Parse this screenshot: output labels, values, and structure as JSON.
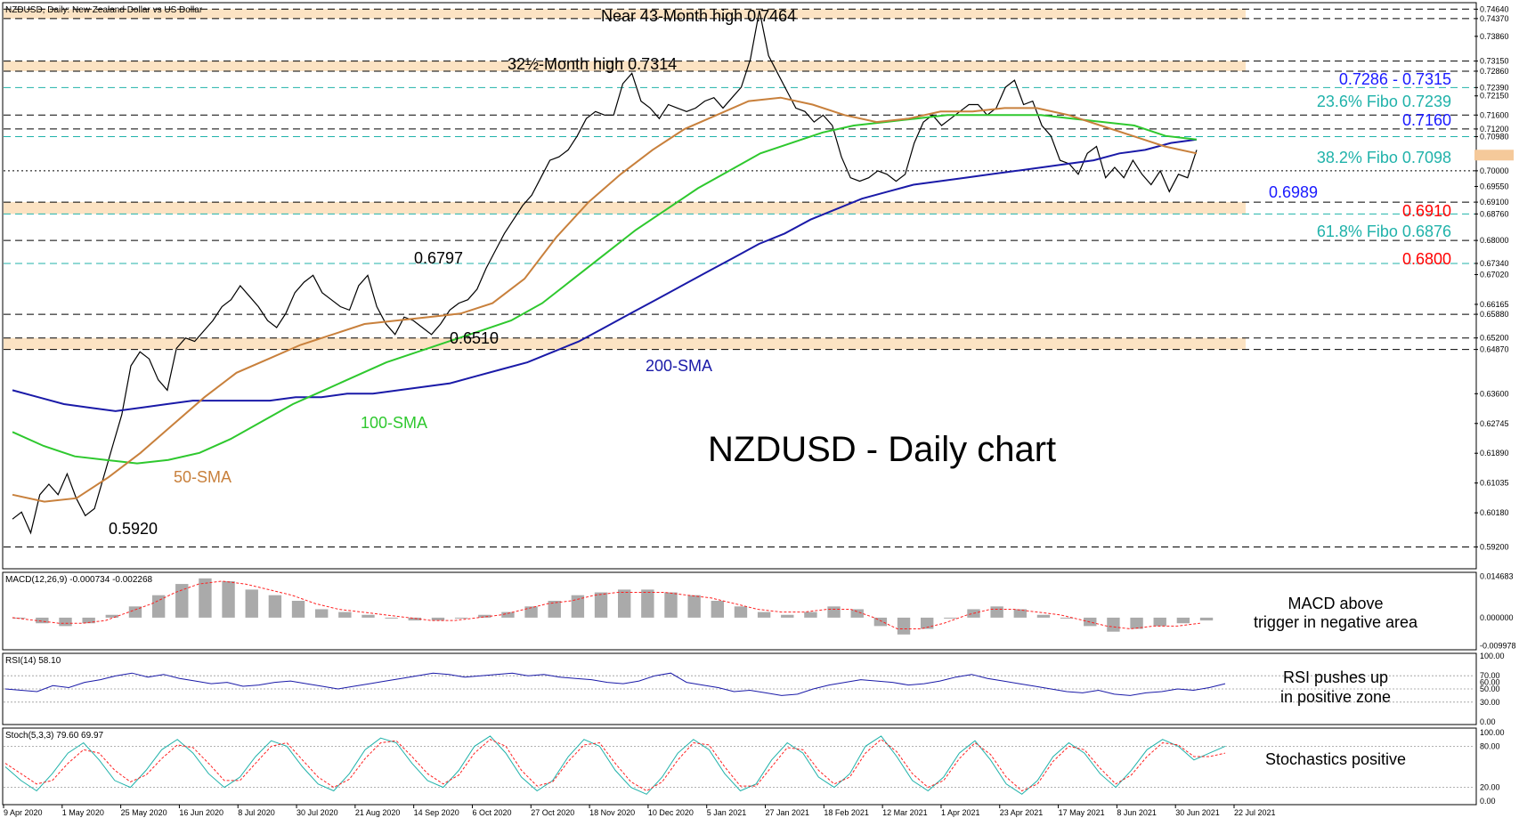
{
  "header": {
    "symbol_line": "NZDUSD, Daily:  New Zealand Dollar vs US Dollar"
  },
  "chart_data": [
    {
      "type": "line",
      "panel": "price",
      "title": "NZDUSD - Daily chart",
      "x_tick_labels": [
        "9 Apr 2020",
        "1 May 2020",
        "25 May 2020",
        "16 Jun 2020",
        "8 Jul 2020",
        "30 Jul 2020",
        "21 Aug 2020",
        "14 Sep 2020",
        "6 Oct 2020",
        "27 Oct 2020",
        "18 Nov 2020",
        "10 Dec 2020",
        "5 Jan 2021",
        "27 Jan 2021",
        "18 Feb 2021",
        "12 Mar 2021",
        "1 Apr 2021",
        "23 Apr 2021",
        "17 May 2021",
        "8 Jun 2021",
        "30 Jun 2021",
        "22 Jul 2021"
      ],
      "y_tick_labels": [
        "0.74640",
        "0.74370",
        "0.73860",
        "0.73150",
        "0.72860",
        "0.72390",
        "0.72150",
        "0.71600",
        "0.71200",
        "0.70980",
        "0.70450",
        "0.70000",
        "0.69550",
        "0.69100",
        "0.68760",
        "0.68000",
        "0.67340",
        "0.67020",
        "0.66165",
        "0.65880",
        "0.65200",
        "0.64870",
        "0.63600",
        "0.62745",
        "0.61890",
        "0.61035",
        "0.60180",
        "0.59200"
      ],
      "ylim": [
        0.5865,
        0.7475
      ],
      "current_price": 0.7045,
      "levels": [
        {
          "value": 0.7464,
          "style": "dashed",
          "color": "#000000"
        },
        {
          "value": 0.7437,
          "style": "dashed",
          "color": "#000000"
        },
        {
          "value": 0.7315,
          "style": "dashed",
          "color": "#000000"
        },
        {
          "value": 0.7286,
          "style": "dashed",
          "color": "#000000"
        },
        {
          "value": 0.7239,
          "style": "dashed",
          "color": "#20b2aa"
        },
        {
          "value": 0.716,
          "style": "dashed",
          "color": "#000000"
        },
        {
          "value": 0.712,
          "style": "dashed",
          "color": "#000000"
        },
        {
          "value": 0.7098,
          "style": "dashed",
          "color": "#20b2aa"
        },
        {
          "value": 0.7,
          "style": "dotted",
          "color": "#000000"
        },
        {
          "value": 0.691,
          "style": "dashed",
          "color": "#000000"
        },
        {
          "value": 0.6876,
          "style": "dashed",
          "color": "#20b2aa"
        },
        {
          "value": 0.68,
          "style": "dashed",
          "color": "#000000"
        },
        {
          "value": 0.6734,
          "style": "dashed",
          "color": "#20b2aa"
        },
        {
          "value": 0.6588,
          "style": "dashed",
          "color": "#000000"
        },
        {
          "value": 0.652,
          "style": "dashed",
          "color": "#000000"
        },
        {
          "value": 0.6487,
          "style": "dashed",
          "color": "#000000"
        },
        {
          "value": 0.592,
          "style": "dashed",
          "color": "#000000"
        }
      ],
      "zones": [
        [
          0.7437,
          0.7464
        ],
        [
          0.7286,
          0.7315
        ],
        [
          0.6876,
          0.691
        ],
        [
          0.6487,
          0.652
        ]
      ],
      "annotations": [
        {
          "text": "Near 43-Month high 0.7464",
          "color": "#000000"
        },
        {
          "text": "32½-Month high 0.7314",
          "color": "#000000"
        },
        {
          "text": "0.6797",
          "color": "#000000"
        },
        {
          "text": "0.6510",
          "color": "#000000"
        },
        {
          "text": "0.5920",
          "color": "#000000"
        },
        {
          "text": "200-SMA",
          "color": "#1a1aa8"
        },
        {
          "text": "100-SMA",
          "color": "#2ec82e"
        },
        {
          "text": "50-SMA",
          "color": "#c8803c"
        },
        {
          "text": "0.7286 - 0.7315",
          "color": "#1a1aff"
        },
        {
          "text": "23.6% Fibo 0.7239",
          "color": "#20b2aa"
        },
        {
          "text": "0.7160",
          "color": "#1a1aff"
        },
        {
          "text": "38.2% Fibo 0.7098",
          "color": "#20b2aa"
        },
        {
          "text": "0.6989",
          "color": "#1a1aff"
        },
        {
          "text": "0.6910",
          "color": "#ff0000"
        },
        {
          "text": "61.8% Fibo 0.6876",
          "color": "#20b2aa"
        },
        {
          "text": "0.6800",
          "color": "#ff0000"
        }
      ],
      "series": [
        {
          "name": "Close",
          "color": "#000000",
          "values": [
            0.6,
            0.602,
            0.596,
            0.607,
            0.61,
            0.607,
            0.613,
            0.606,
            0.601,
            0.603,
            0.612,
            0.621,
            0.63,
            0.644,
            0.648,
            0.646,
            0.64,
            0.637,
            0.649,
            0.652,
            0.651,
            0.654,
            0.657,
            0.661,
            0.663,
            0.667,
            0.664,
            0.661,
            0.657,
            0.655,
            0.659,
            0.665,
            0.668,
            0.67,
            0.665,
            0.663,
            0.661,
            0.66,
            0.667,
            0.67,
            0.661,
            0.656,
            0.653,
            0.658,
            0.657,
            0.655,
            0.653,
            0.656,
            0.66,
            0.662,
            0.663,
            0.666,
            0.672,
            0.677,
            0.682,
            0.686,
            0.69,
            0.693,
            0.698,
            0.703,
            0.704,
            0.706,
            0.71,
            0.715,
            0.717,
            0.716,
            0.716,
            0.725,
            0.728,
            0.72,
            0.718,
            0.715,
            0.719,
            0.718,
            0.717,
            0.718,
            0.72,
            0.721,
            0.718,
            0.721,
            0.724,
            0.732,
            0.746,
            0.733,
            0.728,
            0.723,
            0.718,
            0.717,
            0.714,
            0.716,
            0.713,
            0.704,
            0.698,
            0.697,
            0.698,
            0.7,
            0.699,
            0.697,
            0.699,
            0.708,
            0.714,
            0.716,
            0.713,
            0.715,
            0.717,
            0.719,
            0.719,
            0.716,
            0.718,
            0.724,
            0.726,
            0.719,
            0.72,
            0.713,
            0.71,
            0.703,
            0.702,
            0.699,
            0.705,
            0.707,
            0.698,
            0.701,
            0.698,
            0.703,
            0.699,
            0.696,
            0.7,
            0.694,
            0.699,
            0.698,
            0.706
          ]
        },
        {
          "name": "200-SMA",
          "color": "#1a1aa8",
          "values": [
            0.637,
            0.635,
            0.633,
            0.632,
            0.631,
            0.632,
            0.633,
            0.634,
            0.634,
            0.634,
            0.634,
            0.635,
            0.635,
            0.636,
            0.636,
            0.637,
            0.638,
            0.639,
            0.641,
            0.643,
            0.645,
            0.648,
            0.651,
            0.655,
            0.659,
            0.663,
            0.667,
            0.671,
            0.675,
            0.679,
            0.682,
            0.686,
            0.689,
            0.692,
            0.694,
            0.696,
            0.697,
            0.698,
            0.699,
            0.7,
            0.701,
            0.702,
            0.703,
            0.705,
            0.706,
            0.708,
            0.709
          ]
        },
        {
          "name": "100-SMA",
          "color": "#2ec82e",
          "values": [
            0.625,
            0.621,
            0.618,
            0.617,
            0.616,
            0.617,
            0.619,
            0.623,
            0.628,
            0.633,
            0.637,
            0.641,
            0.645,
            0.648,
            0.651,
            0.654,
            0.657,
            0.662,
            0.669,
            0.676,
            0.683,
            0.689,
            0.695,
            0.7,
            0.705,
            0.708,
            0.711,
            0.713,
            0.714,
            0.715,
            0.716,
            0.716,
            0.716,
            0.716,
            0.715,
            0.714,
            0.713,
            0.71,
            0.709
          ]
        },
        {
          "name": "50-SMA",
          "color": "#c8803c",
          "values": [
            0.607,
            0.605,
            0.606,
            0.612,
            0.619,
            0.627,
            0.635,
            0.642,
            0.646,
            0.65,
            0.653,
            0.656,
            0.657,
            0.658,
            0.659,
            0.662,
            0.669,
            0.681,
            0.691,
            0.699,
            0.706,
            0.712,
            0.716,
            0.72,
            0.721,
            0.719,
            0.716,
            0.714,
            0.715,
            0.717,
            0.717,
            0.718,
            0.718,
            0.716,
            0.713,
            0.71,
            0.707,
            0.705
          ]
        }
      ]
    },
    {
      "type": "bar",
      "panel": "MACD",
      "title": "MACD(12,26,9) -0.000734 -0.002268",
      "y_tick_labels": [
        "0.014683",
        "0.000000",
        "-0.009978"
      ],
      "ylim": [
        -0.0105,
        0.0152
      ],
      "series": [
        {
          "name": "MACD",
          "color": "#aaaaaa",
          "values": [
            0.0,
            -0.002,
            -0.003,
            -0.002,
            0.001,
            0.004,
            0.008,
            0.012,
            0.014,
            0.013,
            0.01,
            0.008,
            0.006,
            0.003,
            0.002,
            0.001,
            0.0,
            -0.001,
            -0.001,
            0.0,
            0.001,
            0.002,
            0.004,
            0.006,
            0.008,
            0.009,
            0.01,
            0.01,
            0.009,
            0.008,
            0.006,
            0.004,
            0.002,
            0.001,
            0.002,
            0.004,
            0.003,
            -0.003,
            -0.006,
            -0.004,
            0.0,
            0.003,
            0.004,
            0.003,
            0.001,
            0.0,
            -0.003,
            -0.005,
            -0.004,
            -0.003,
            -0.002,
            -0.001
          ]
        },
        {
          "name": "Signal",
          "color": "#ff2020",
          "values": [
            0.0,
            -0.001,
            -0.002,
            -0.002,
            -0.001,
            0.002,
            0.005,
            0.009,
            0.012,
            0.013,
            0.012,
            0.01,
            0.008,
            0.005,
            0.003,
            0.002,
            0.001,
            0.0,
            -0.001,
            -0.001,
            0.0,
            0.001,
            0.003,
            0.005,
            0.006,
            0.008,
            0.009,
            0.009,
            0.009,
            0.008,
            0.007,
            0.005,
            0.003,
            0.002,
            0.002,
            0.003,
            0.003,
            0.0,
            -0.004,
            -0.004,
            -0.002,
            0.001,
            0.003,
            0.003,
            0.002,
            0.001,
            -0.001,
            -0.003,
            -0.004,
            -0.003,
            -0.003,
            -0.002
          ]
        }
      ],
      "annotation": [
        "MACD above",
        "trigger in negative area"
      ]
    },
    {
      "type": "line",
      "panel": "RSI",
      "title": "RSI(14) 58.10",
      "y_tick_labels": [
        "100.00",
        "70.00",
        "60.00",
        "50.00",
        "30.00",
        "0.00"
      ],
      "ylim": [
        0,
        100
      ],
      "series": [
        {
          "name": "RSI",
          "color": "#1a1aa8",
          "values": [
            50,
            48,
            46,
            55,
            52,
            60,
            64,
            70,
            74,
            68,
            72,
            66,
            62,
            58,
            60,
            54,
            56,
            60,
            62,
            58,
            54,
            50,
            54,
            58,
            62,
            66,
            70,
            74,
            72,
            68,
            70,
            72,
            74,
            70,
            72,
            68,
            66,
            64,
            60,
            58,
            62,
            70,
            74,
            60,
            56,
            52,
            46,
            48,
            44,
            40,
            42,
            50,
            56,
            60,
            64,
            62,
            60,
            56,
            58,
            62,
            68,
            72,
            66,
            62,
            58,
            54,
            50,
            46,
            44,
            48,
            42,
            40,
            44,
            46,
            50,
            48,
            52,
            58
          ]
        }
      ],
      "annotation": [
        "RSI pushes up",
        "in positive zone"
      ]
    },
    {
      "type": "line",
      "panel": "Stochastic",
      "title": "Stoch(5,3,3) 79.60 69.97",
      "y_tick_labels": [
        "100.00",
        "80.00",
        "20.00",
        "0.00"
      ],
      "ylim": [
        0,
        100
      ],
      "series": [
        {
          "name": "%K",
          "color": "#20b2aa",
          "values": [
            50,
            30,
            15,
            40,
            70,
            85,
            60,
            30,
            20,
            45,
            75,
            90,
            70,
            40,
            20,
            35,
            65,
            88,
            80,
            50,
            25,
            15,
            40,
            75,
            92,
            85,
            55,
            30,
            20,
            45,
            80,
            95,
            70,
            35,
            15,
            30,
            65,
            90,
            80,
            45,
            20,
            10,
            35,
            70,
            90,
            75,
            40,
            15,
            25,
            60,
            85,
            70,
            35,
            20,
            40,
            80,
            95,
            65,
            30,
            15,
            35,
            70,
            88,
            60,
            25,
            10,
            30,
            65,
            85,
            70,
            40,
            20,
            45,
            75,
            90,
            80,
            60,
            70,
            80
          ]
        },
        {
          "name": "%D",
          "color": "#ff2020",
          "values": [
            55,
            40,
            25,
            30,
            55,
            75,
            70,
            45,
            28,
            38,
            62,
            82,
            78,
            55,
            30,
            30,
            55,
            80,
            85,
            60,
            35,
            20,
            32,
            62,
            85,
            88,
            65,
            40,
            25,
            38,
            70,
            90,
            80,
            45,
            22,
            28,
            58,
            82,
            85,
            55,
            28,
            15,
            28,
            60,
            85,
            82,
            50,
            22,
            22,
            50,
            78,
            75,
            45,
            25,
            35,
            70,
            90,
            72,
            40,
            20,
            30,
            62,
            85,
            68,
            35,
            15,
            25,
            58,
            80,
            75,
            48,
            25,
            38,
            65,
            85,
            82,
            65,
            65,
            70
          ]
        }
      ],
      "annotation": [
        "Stochastics positive"
      ]
    }
  ]
}
